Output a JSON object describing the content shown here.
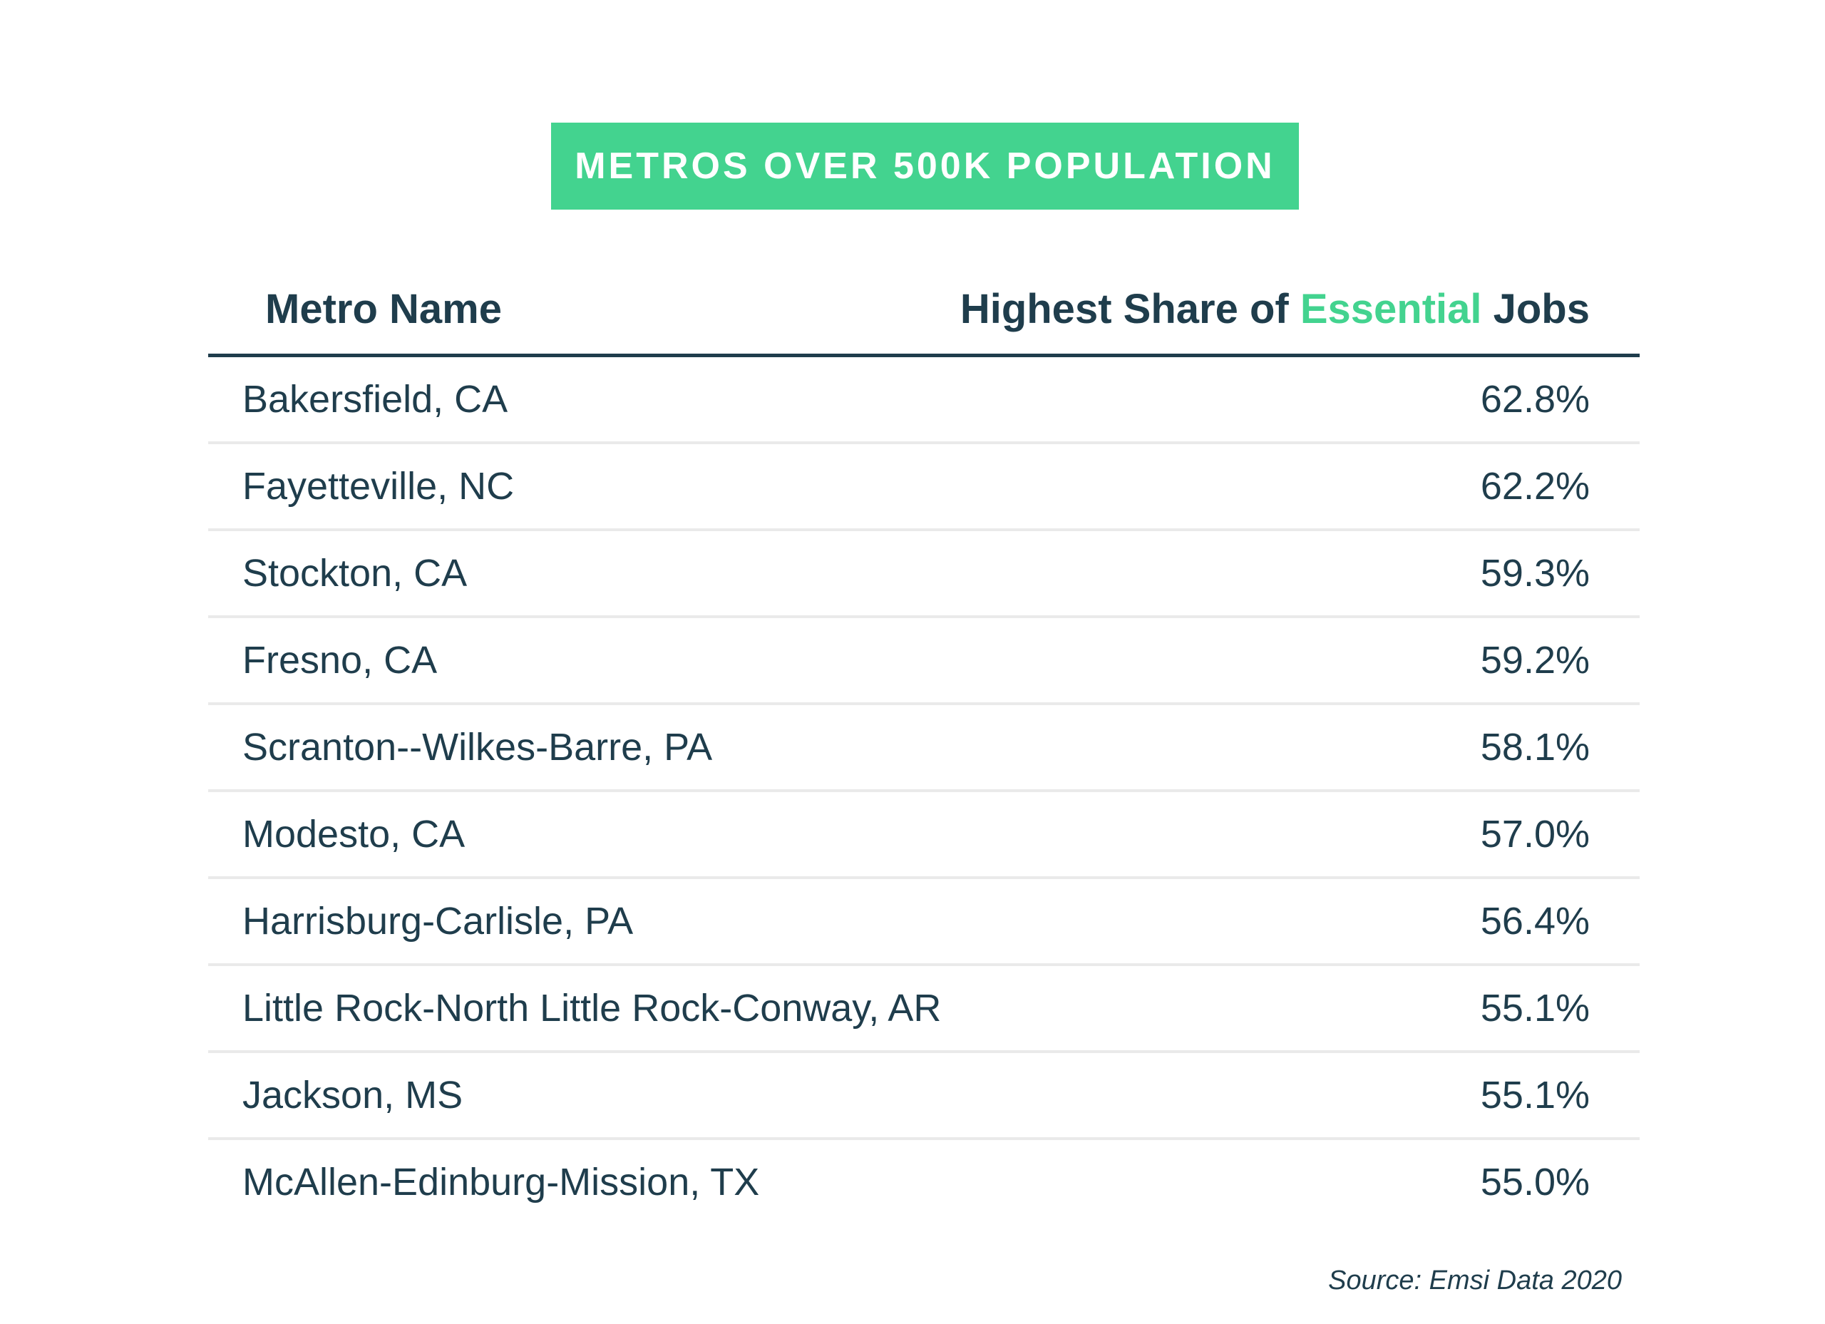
{
  "chart_data": {
    "type": "table",
    "title": "METROS OVER 500K POPULATION",
    "columns": {
      "name": "Metro Name",
      "value_prefix": "Highest Share of ",
      "value_accent": "Essential",
      "value_suffix": " Jobs"
    },
    "rows": [
      {
        "name": "Bakersfield, CA",
        "value": "62.8%"
      },
      {
        "name": "Fayetteville, NC",
        "value": "62.2%"
      },
      {
        "name": "Stockton, CA",
        "value": "59.3%"
      },
      {
        "name": "Fresno, CA",
        "value": "59.2%"
      },
      {
        "name": "Scranton--Wilkes-Barre, PA",
        "value": "58.1%"
      },
      {
        "name": "Modesto, CA",
        "value": "57.0%"
      },
      {
        "name": "Harrisburg-Carlisle, PA",
        "value": "56.4%"
      },
      {
        "name": "Little Rock-North Little Rock-Conway, AR",
        "value": "55.1%"
      },
      {
        "name": "Jackson, MS",
        "value": "55.1%"
      },
      {
        "name": "McAllen-Edinburg-Mission, TX",
        "value": "55.0%"
      }
    ],
    "source": "Source: Emsi Data 2020",
    "colors": {
      "accent": "#43d38f",
      "text": "#1f3d4c",
      "divider": "#eaeaea"
    }
  }
}
